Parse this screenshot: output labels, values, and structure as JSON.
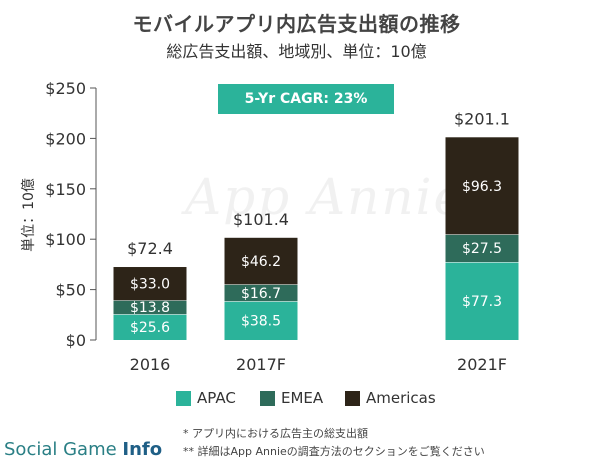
{
  "title": "モバイルアプリ内広告支出額の推移",
  "subtitle": "総広告支出額、地域別、単位：10億",
  "cagr_label": "5-Yr CAGR: 23%",
  "watermark": "App Annie",
  "footnote1": "* アプリ内における広告主の総支出額",
  "footnote2": "** 詳細はApp Annieの調査方法のセクションをご覧ください",
  "brand": {
    "part1": "Social Game ",
    "part2": "Info"
  },
  "colors": {
    "APAC": "#2bb39a",
    "EMEA": "#2e6b5a",
    "Americas": "#2d2418",
    "axis": "#555555"
  },
  "chart_data": {
    "type": "bar",
    "stacked": true,
    "categories": [
      "2016",
      "2017F",
      "2021F"
    ],
    "series": [
      {
        "name": "APAC",
        "values": [
          25.6,
          38.5,
          77.3
        ],
        "labels": [
          "$25.6",
          "$38.5",
          "$77.3"
        ]
      },
      {
        "name": "EMEA",
        "values": [
          13.8,
          16.7,
          27.5
        ],
        "labels": [
          "$13.8",
          "$16.7",
          "$27.5"
        ]
      },
      {
        "name": "Americas",
        "values": [
          33.0,
          46.2,
          96.3
        ],
        "labels": [
          "$33.0",
          "$46.2",
          "$96.3"
        ]
      }
    ],
    "totals": [
      72.4,
      101.4,
      201.1
    ],
    "total_labels": [
      "$72.4",
      "$101.4",
      "$201.1"
    ],
    "ylabel": "単位：10億",
    "ylim": [
      0,
      250
    ],
    "yticks": [
      0,
      50,
      100,
      150,
      200,
      250
    ],
    "ytick_labels": [
      "$0",
      "$50",
      "$100",
      "$150",
      "$200",
      "$250"
    ],
    "grid": false,
    "legend": "bottom"
  }
}
